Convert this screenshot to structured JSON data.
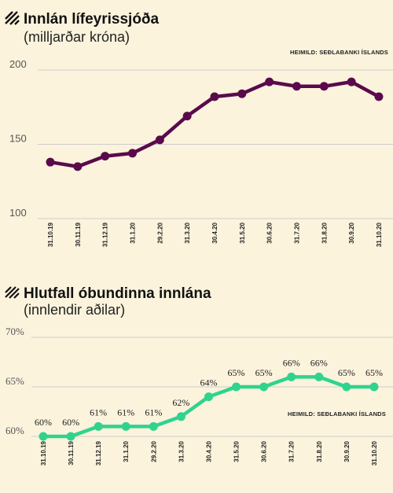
{
  "chart_data": [
    {
      "type": "line",
      "title": "Innlán lífeyrissjóða",
      "subtitle": "(milljarðar króna)",
      "source": "HEIMILD: SEÐLABANKI ÍSLANDS",
      "categories": [
        "31.10.19",
        "30.11.19",
        "31.12.19",
        "31.1.20",
        "29.2.20",
        "31.3.20",
        "30.4.20",
        "31.5.20",
        "30.6.20",
        "31.7.20",
        "31.8.20",
        "30.9.20",
        "31.10.20"
      ],
      "values": [
        138,
        135,
        142,
        144,
        153,
        169,
        182,
        184,
        192,
        189,
        189,
        192,
        182
      ],
      "yticks": [
        "100",
        "150",
        "200"
      ],
      "ylim": [
        100,
        200
      ],
      "grid": true,
      "color": "#5a0a4c"
    },
    {
      "type": "line",
      "title": "Hlutfall óbundinna innlána",
      "subtitle": "(innlendir aðilar)",
      "source": "HEIMILD: SEÐLABANKI ÍSLANDS",
      "categories": [
        "31.10.19",
        "30.11.19",
        "31.12.19",
        "31.1.20",
        "29.2.20",
        "31.3.20",
        "30.4.20",
        "31.5.20",
        "30.6.20",
        "31.7.20",
        "31.8.20",
        "30.9.20",
        "31.10.20"
      ],
      "values": [
        60,
        60,
        61,
        61,
        61,
        62,
        64,
        65,
        65,
        66,
        66,
        65,
        65
      ],
      "labels": [
        "60%",
        "60%",
        "61%",
        "61%",
        "61%",
        "62%",
        "64%",
        "65%",
        "65%",
        "66%",
        "66%",
        "65%",
        "65%"
      ],
      "yticks": [
        "60%",
        "65%",
        "70%"
      ],
      "ylim": [
        60,
        70
      ],
      "grid": true,
      "color": "#2fd38e"
    }
  ]
}
